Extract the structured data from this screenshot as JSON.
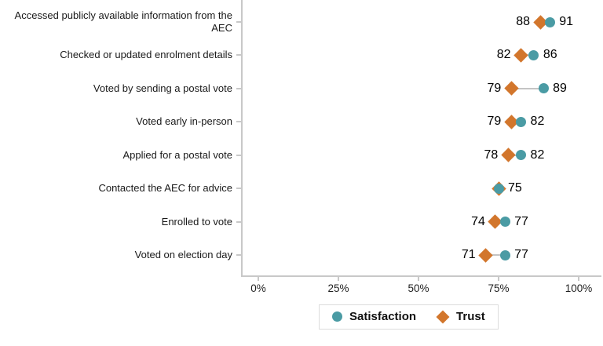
{
  "chart_data": {
    "type": "scatter",
    "subtype": "dumbbell-dot-plot",
    "categories": [
      "Accessed publicly available information from the AEC",
      "Checked or updated enrolment details",
      "Voted by sending a postal vote",
      "Voted early in-person",
      "Applied for a postal vote",
      "Contacted the AEC for advice",
      "Enrolled to vote",
      "Voted on election day"
    ],
    "series": [
      {
        "name": "Satisfaction",
        "marker": "circle",
        "color": "#4A9BA4",
        "values": [
          91,
          86,
          89,
          82,
          82,
          75,
          77,
          77
        ]
      },
      {
        "name": "Trust",
        "marker": "diamond",
        "color": "#D2762C",
        "values": [
          88,
          82,
          79,
          79,
          78,
          75,
          74,
          71
        ]
      }
    ],
    "title": "",
    "xlabel": "",
    "ylabel": "",
    "xlim": [
      0,
      100
    ],
    "x_tick_values": [
      0,
      25,
      50,
      75,
      100
    ],
    "x_tick_labels": [
      "0%",
      "25%",
      "50%",
      "75%",
      "100%"
    ],
    "grid": false,
    "legend_position": "bottom",
    "axis_color": "#C8C8C8",
    "connector_color": "#C4C4C4",
    "value_labels_shown": true
  }
}
